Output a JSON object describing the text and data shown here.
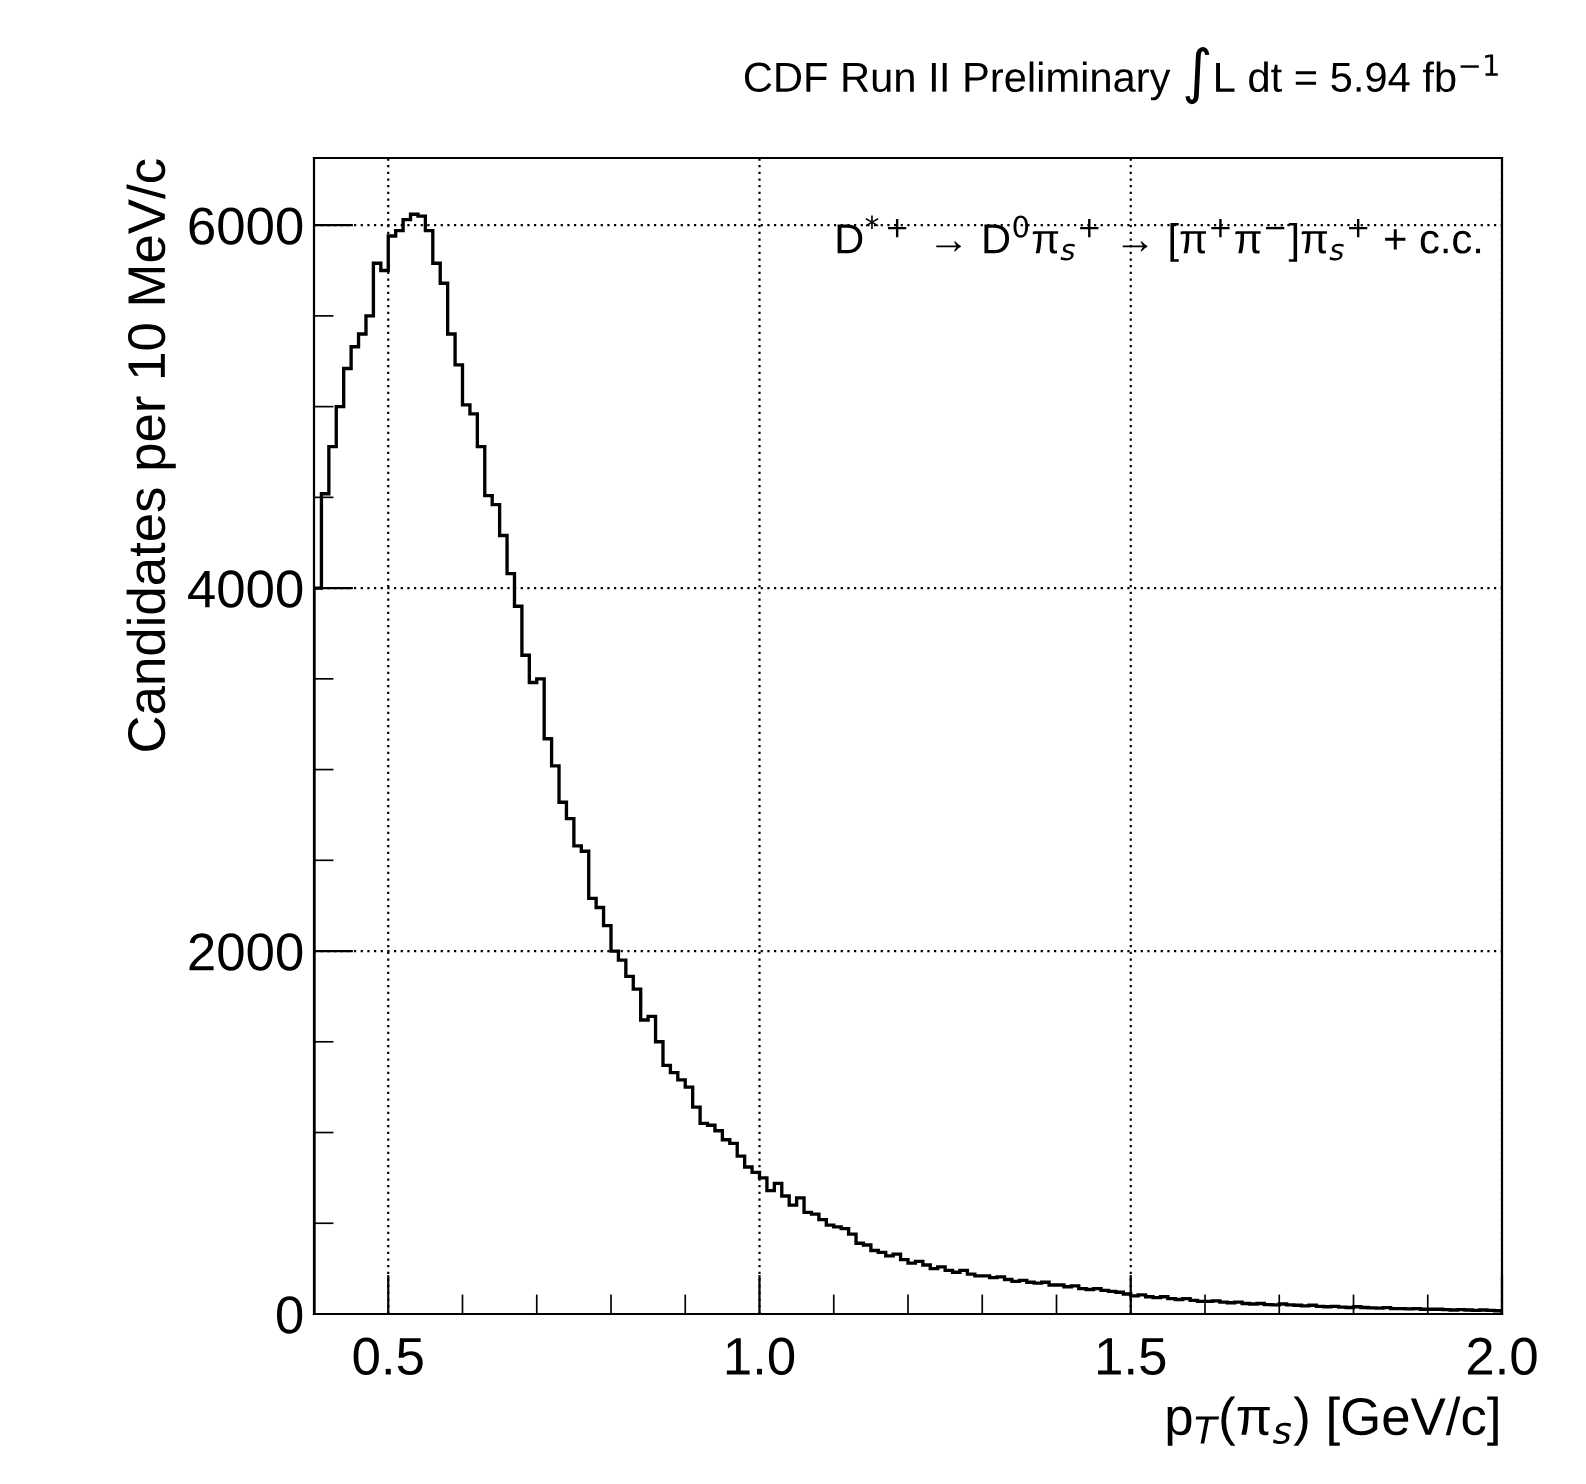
{
  "chart_data": {
    "type": "histogram",
    "title": "CDF Run II Preliminary ∫L dt = 5.94 fb$^{−1}$",
    "xlabel": "p$_{T}$(π$_{s}$) [GeV/c]",
    "ylabel": "Candidates per 10 MeV/c",
    "annotations": [
      "D$^{*+}$ → D$^{0}$π$_{s}$$^{+}$ → [π$^{+}$π$^{−}$]π$_{s}$$^{+}$ + c.c."
    ],
    "color": "#000000",
    "bins": [
      0.4,
      0.41,
      0.42,
      0.43,
      0.44,
      0.45,
      0.46,
      0.47,
      0.48,
      0.49,
      0.5,
      0.51,
      0.52,
      0.53,
      0.54,
      0.55,
      0.56,
      0.57,
      0.58,
      0.59,
      0.6,
      0.61,
      0.62,
      0.63,
      0.64,
      0.65,
      0.66,
      0.67,
      0.68,
      0.69,
      0.7,
      0.71,
      0.72,
      0.73,
      0.74,
      0.75,
      0.76,
      0.77,
      0.78,
      0.79,
      0.8,
      0.81,
      0.82,
      0.83,
      0.84,
      0.85,
      0.86,
      0.87,
      0.88,
      0.89,
      0.9,
      0.91,
      0.92,
      0.93,
      0.94,
      0.95,
      0.96,
      0.97,
      0.98,
      0.99,
      1.0,
      1.01,
      1.02,
      1.03,
      1.04,
      1.05,
      1.06,
      1.07,
      1.08,
      1.09,
      1.1,
      1.11,
      1.12,
      1.13,
      1.14,
      1.15,
      1.16,
      1.17,
      1.18,
      1.19,
      1.2,
      1.21,
      1.22,
      1.23,
      1.24,
      1.25,
      1.26,
      1.27,
      1.28,
      1.29,
      1.3,
      1.31,
      1.32,
      1.33,
      1.34,
      1.35,
      1.36,
      1.37,
      1.38,
      1.39,
      1.4,
      1.41,
      1.42,
      1.43,
      1.44,
      1.45,
      1.46,
      1.47,
      1.48,
      1.49,
      1.5,
      1.51,
      1.52,
      1.53,
      1.54,
      1.55,
      1.56,
      1.57,
      1.58,
      1.59,
      1.6,
      1.61,
      1.62,
      1.63,
      1.64,
      1.65,
      1.66,
      1.67,
      1.68,
      1.69,
      1.7,
      1.71,
      1.72,
      1.73,
      1.74,
      1.75,
      1.76,
      1.77,
      1.78,
      1.79,
      1.8,
      1.81,
      1.82,
      1.83,
      1.84,
      1.85,
      1.86,
      1.87,
      1.88,
      1.89,
      1.9,
      1.91,
      1.92,
      1.93,
      1.94,
      1.95,
      1.96,
      1.97,
      1.98,
      1.99,
      2.0
    ],
    "values": [
      4000,
      4520,
      4780,
      5000,
      5210,
      5330,
      5400,
      5500,
      5790,
      5750,
      5940,
      5970,
      6030,
      6060,
      6050,
      5970,
      5790,
      5680,
      5400,
      5230,
      5010,
      4960,
      4780,
      4510,
      4460,
      4290,
      4080,
      3900,
      3630,
      3480,
      3500,
      3170,
      3020,
      2820,
      2730,
      2580,
      2550,
      2290,
      2240,
      2140,
      2000,
      1950,
      1860,
      1790,
      1620,
      1640,
      1500,
      1370,
      1330,
      1290,
      1250,
      1140,
      1050,
      1040,
      1010,
      960,
      940,
      870,
      810,
      780,
      750,
      680,
      720,
      650,
      600,
      640,
      560,
      550,
      520,
      490,
      480,
      470,
      440,
      390,
      380,
      350,
      340,
      320,
      330,
      300,
      280,
      290,
      270,
      250,
      260,
      240,
      230,
      240,
      220,
      210,
      210,
      200,
      205,
      190,
      180,
      185,
      175,
      170,
      175,
      160,
      160,
      150,
      155,
      140,
      135,
      140,
      130,
      125,
      120,
      110,
      100,
      105,
      95,
      90,
      95,
      85,
      80,
      85,
      75,
      70,
      70,
      72,
      65,
      62,
      65,
      58,
      55,
      58,
      52,
      50,
      55,
      50,
      48,
      45,
      48,
      42,
      40,
      42,
      38,
      36,
      40,
      36,
      34,
      32,
      35,
      30,
      30,
      28,
      30,
      26,
      25,
      27,
      24,
      22,
      24,
      22,
      20,
      22,
      20,
      18
    ],
    "xlim": [
      0.4,
      2.0
    ],
    "ylim": [
      0,
      6370
    ],
    "xticks": [
      {
        "value": 0.4,
        "label": null
      },
      {
        "value": 0.5,
        "label": "0.5"
      },
      {
        "value": 0.6,
        "label": null
      },
      {
        "value": 0.7,
        "label": null
      },
      {
        "value": 0.8,
        "label": null
      },
      {
        "value": 0.9,
        "label": null
      },
      {
        "value": 1.0,
        "label": "1.0"
      },
      {
        "value": 1.1,
        "label": null
      },
      {
        "value": 1.2,
        "label": null
      },
      {
        "value": 1.3,
        "label": null
      },
      {
        "value": 1.4,
        "label": null
      },
      {
        "value": 1.5,
        "label": "1.5"
      },
      {
        "value": 1.6,
        "label": null
      },
      {
        "value": 1.7,
        "label": null
      },
      {
        "value": 1.8,
        "label": null
      },
      {
        "value": 1.9,
        "label": null
      },
      {
        "value": 2.0,
        "label": "2.0"
      }
    ],
    "yticks": [
      0,
      {
        "value": 500,
        "label": null
      },
      {
        "value": 1000,
        "label": null
      },
      {
        "value": 1500,
        "label": null
      },
      2000,
      {
        "value": 2500,
        "label": null
      },
      {
        "value": 3000,
        "label": null
      },
      {
        "value": 3500,
        "label": null
      },
      4000,
      {
        "value": 4500,
        "label": null
      },
      {
        "value": 5000,
        "label": null
      },
      {
        "value": 5500,
        "label": null
      },
      6000
    ],
    "grid": true
  }
}
